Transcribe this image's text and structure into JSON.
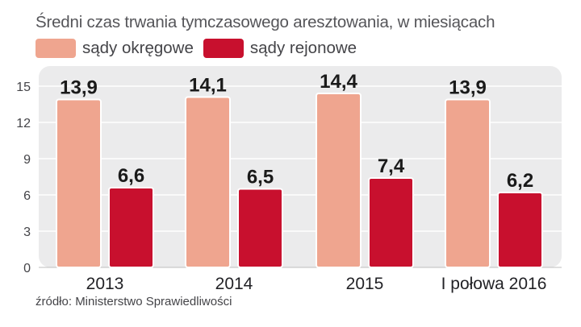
{
  "colors": {
    "okregowe": "#EFA58F",
    "rejonowe": "#C8102E",
    "panel": "#EBEBEC",
    "grid": "#FFFFFF"
  },
  "chart_data": {
    "type": "bar",
    "title": "Średni czas trwania tymczasowego aresztowania, w miesiącach",
    "categories": [
      "2013",
      "2014",
      "2015",
      "I połowa 2016"
    ],
    "series": [
      {
        "name": "sądy okręgowe",
        "values": [
          13.9,
          14.1,
          14.4,
          13.9
        ],
        "labels": [
          "13,9",
          "14,1",
          "14,4",
          "13,9"
        ]
      },
      {
        "name": "sądy rejonowe",
        "values": [
          6.6,
          6.5,
          7.4,
          6.2
        ],
        "labels": [
          "6,6",
          "6,5",
          "7,4",
          "6,2"
        ]
      }
    ],
    "y_ticks": [
      0,
      3,
      6,
      9,
      12,
      15
    ],
    "ylim": [
      0,
      15
    ],
    "xlabel": "",
    "ylabel": "",
    "legend": "top-left",
    "grid": true,
    "source": "źródło: Ministerstwo Sprawiedliwości"
  }
}
